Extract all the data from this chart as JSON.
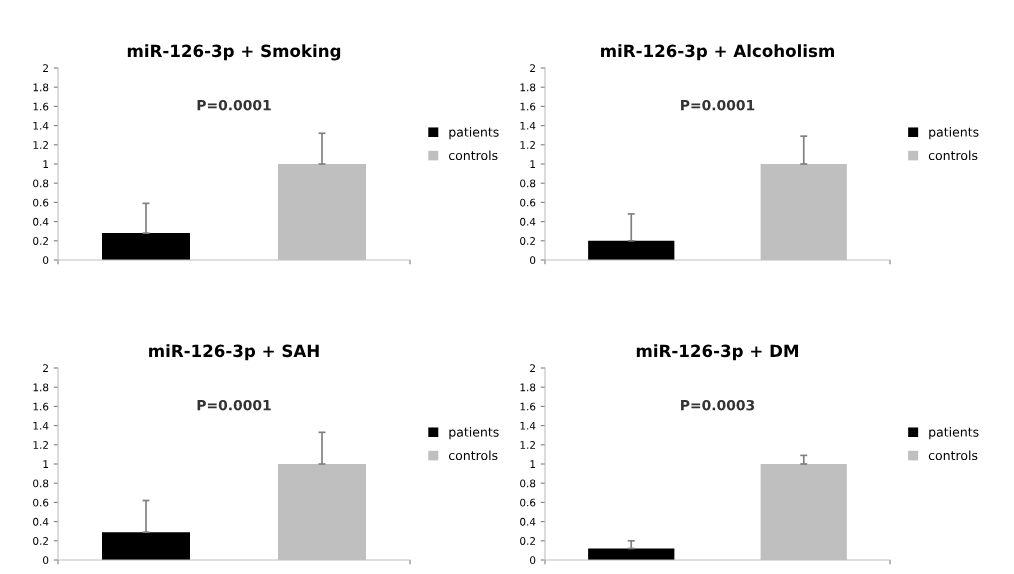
{
  "chart_data": [
    {
      "type": "bar",
      "title": "miR-126-3p + Smoking",
      "categories": [
        null
      ],
      "ylim": [
        0,
        2
      ],
      "yticks": [
        0,
        0.2,
        0.4,
        0.6,
        0.8,
        1,
        1.2,
        1.4,
        1.6,
        1.8,
        2
      ],
      "grid": false,
      "legend": "right",
      "annotations": [
        "P=0.0001"
      ],
      "series": [
        {
          "name": "patients",
          "color": "#000000",
          "values": [
            0.28
          ],
          "errors": [
            [
              0.28,
              0.59
            ]
          ]
        },
        {
          "name": "controls",
          "color": "#bfbfbf",
          "values": [
            1.0
          ],
          "errors": [
            [
              1.0,
              1.32
            ]
          ]
        }
      ]
    },
    {
      "type": "bar",
      "title": "miR-126-3p + Alcoholism",
      "categories": [
        null
      ],
      "ylim": [
        0,
        2
      ],
      "yticks": [
        0,
        0.2,
        0.4,
        0.6,
        0.8,
        1,
        1.2,
        1.4,
        1.6,
        1.8,
        2
      ],
      "grid": false,
      "legend": "right",
      "annotations": [
        "P=0.0001"
      ],
      "series": [
        {
          "name": "patients",
          "color": "#000000",
          "values": [
            0.2
          ],
          "errors": [
            [
              0.2,
              0.48
            ]
          ]
        },
        {
          "name": "controls",
          "color": "#bfbfbf",
          "values": [
            1.0
          ],
          "errors": [
            [
              1.0,
              1.29
            ]
          ]
        }
      ]
    },
    {
      "type": "bar",
      "title": "miR-126-3p + SAH",
      "categories": [
        null
      ],
      "ylim": [
        0,
        2
      ],
      "yticks": [
        0,
        0.2,
        0.4,
        0.6,
        0.8,
        1,
        1.2,
        1.4,
        1.6,
        1.8,
        2
      ],
      "grid": false,
      "legend": "right",
      "annotations": [
        "P=0.0001"
      ],
      "series": [
        {
          "name": "patients",
          "color": "#000000",
          "values": [
            0.29
          ],
          "errors": [
            [
              0.29,
              0.62
            ]
          ]
        },
        {
          "name": "controls",
          "color": "#bfbfbf",
          "values": [
            1.0
          ],
          "errors": [
            [
              1.0,
              1.33
            ]
          ]
        }
      ]
    },
    {
      "type": "bar",
      "title": "miR-126-3p + DM",
      "categories": [
        null
      ],
      "ylim": [
        0,
        2
      ],
      "yticks": [
        0,
        0.2,
        0.4,
        0.6,
        0.8,
        1,
        1.2,
        1.4,
        1.6,
        1.8,
        2
      ],
      "grid": false,
      "legend": "right",
      "annotations": [
        "P=0.0003"
      ],
      "series": [
        {
          "name": "patients",
          "color": "#000000",
          "values": [
            0.12
          ],
          "errors": [
            [
              0.12,
              0.2
            ]
          ]
        },
        {
          "name": "controls",
          "color": "#bfbfbf",
          "values": [
            1.0
          ],
          "errors": [
            [
              1.0,
              1.09
            ]
          ]
        }
      ]
    }
  ]
}
